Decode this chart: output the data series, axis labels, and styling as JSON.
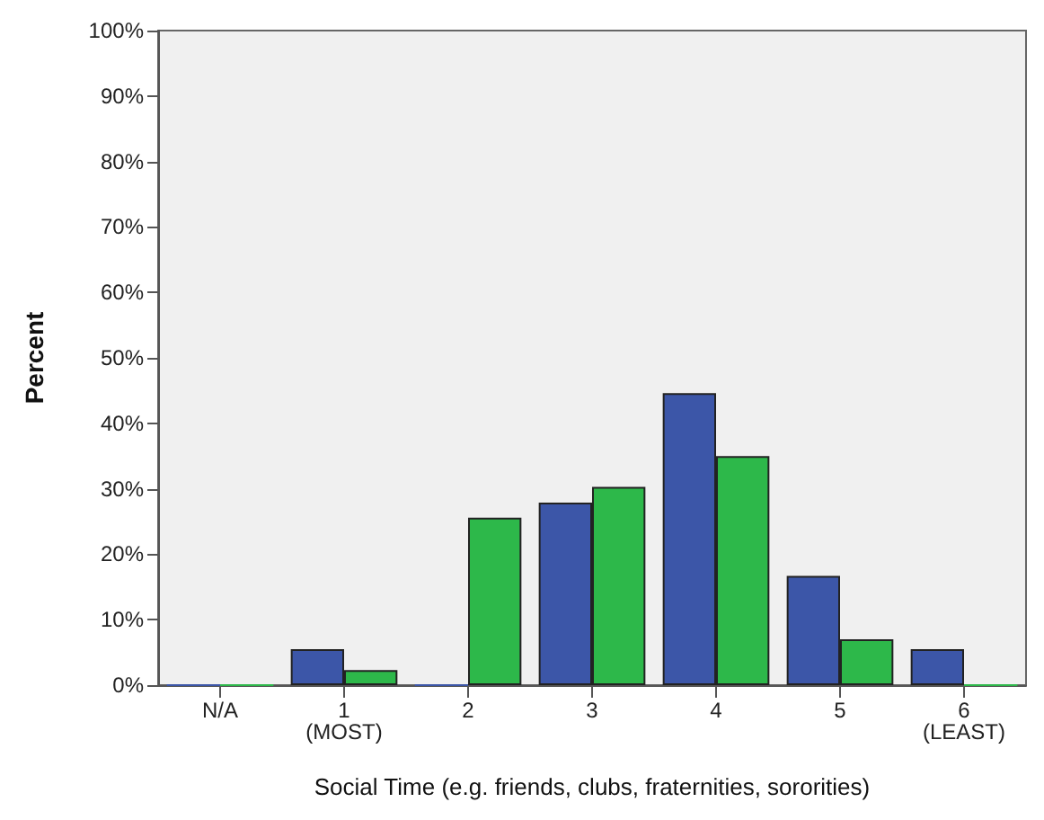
{
  "chart_data": {
    "type": "bar",
    "xlabel": "Social Time (e.g. friends, clubs, fraternities, sororities)",
    "ylabel": "Percent",
    "categories": [
      "N/A",
      "1\n(MOST)",
      "2",
      "3",
      "4",
      "5",
      "6\n(LEAST)"
    ],
    "series": [
      {
        "color": "#3c56a8",
        "values": [
          0,
          5.5,
          0,
          27.9,
          44.6,
          16.7,
          5.5
        ]
      },
      {
        "color": "#2db84a",
        "values": [
          0,
          2.3,
          25.6,
          30.3,
          35.0,
          7.0,
          0
        ]
      }
    ],
    "ylim": [
      0,
      100
    ],
    "yticks": [
      {
        "value": 0,
        "label": "0%"
      },
      {
        "value": 10,
        "label": "10%"
      },
      {
        "value": 20,
        "label": "20%"
      },
      {
        "value": 30,
        "label": "30%"
      },
      {
        "value": 40,
        "label": "40%"
      },
      {
        "value": 50,
        "label": "50%"
      },
      {
        "value": 60,
        "label": "60%"
      },
      {
        "value": 70,
        "label": "70%"
      },
      {
        "value": 80,
        "label": "80%"
      },
      {
        "value": 90,
        "label": "90%"
      },
      {
        "value": 100,
        "label": "100%"
      }
    ],
    "grid": false
  }
}
